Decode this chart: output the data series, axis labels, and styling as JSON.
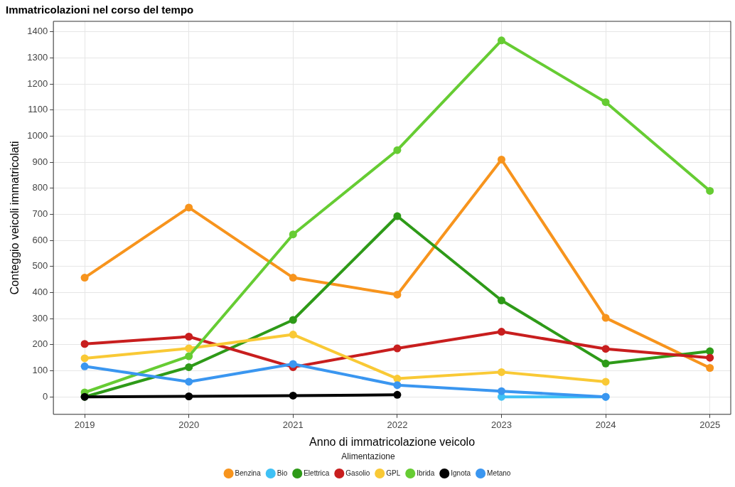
{
  "chart_data": {
    "type": "line",
    "title": "Immatricolazioni nel corso del tempo",
    "xlabel": "Anno di immatricolazione veicolo",
    "ylabel": "Conteggio veicoli immatricolati",
    "legend_title": "Alimentazione",
    "legend": "bottom",
    "grid": true,
    "marker": "circle",
    "line_style": "solid",
    "x": [
      2019,
      2020,
      2021,
      2022,
      2023,
      2024,
      2025
    ],
    "xlim": [
      2018.7,
      2025.2
    ],
    "xticks": [
      2019,
      2020,
      2021,
      2022,
      2023,
      2024,
      2025
    ],
    "ylim": [
      -67,
      1440
    ],
    "yticks": [
      0,
      100,
      200,
      300,
      400,
      500,
      600,
      700,
      800,
      900,
      1000,
      1100,
      1200,
      1300,
      1400
    ],
    "series": [
      {
        "name": "Benzina",
        "color": "#f7941d",
        "values": [
          457,
          726,
          457,
          392,
          910,
          303,
          111
        ]
      },
      {
        "name": "Bio",
        "color": "#3fc1f5",
        "values": [
          null,
          null,
          null,
          null,
          0,
          0,
          null
        ]
      },
      {
        "name": "Elettrica",
        "color": "#2e9a18",
        "values": [
          0,
          114,
          295,
          693,
          370,
          128,
          175
        ]
      },
      {
        "name": "Gasolio",
        "color": "#c81e1e",
        "values": [
          203,
          231,
          114,
          186,
          250,
          184,
          150
        ]
      },
      {
        "name": "GPL",
        "color": "#f9c935",
        "values": [
          148,
          186,
          239,
          70,
          95,
          58,
          null
        ]
      },
      {
        "name": "Ibrida",
        "color": "#66cc33",
        "values": [
          17,
          156,
          623,
          946,
          1367,
          1130,
          790
        ]
      },
      {
        "name": "Ignota",
        "color": "#000000",
        "values": [
          0,
          2,
          5,
          8,
          null,
          null,
          null
        ]
      },
      {
        "name": "Metano",
        "color": "#3a96f0",
        "values": [
          117,
          58,
          126,
          45,
          22,
          0,
          null
        ]
      }
    ]
  }
}
